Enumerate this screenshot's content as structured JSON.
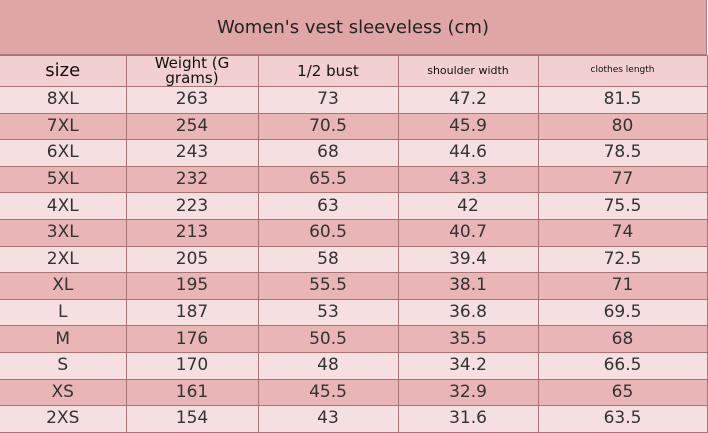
{
  "table": {
    "title": "Women's vest sleeveless (cm)",
    "header": [
      "size",
      "Weight (G grams)",
      "1/2 bust",
      "shoulder width",
      "clothes length"
    ],
    "rows": [
      [
        "8XL",
        263,
        73,
        47.2,
        81.5
      ],
      [
        "7XL",
        254,
        70.5,
        45.9,
        80
      ],
      [
        "6XL",
        243,
        68,
        44.6,
        78.5
      ],
      [
        "5XL",
        232,
        65.5,
        43.3,
        77
      ],
      [
        "4XL",
        223,
        63,
        42,
        75.5
      ],
      [
        "3XL",
        213,
        60.5,
        40.7,
        74
      ],
      [
        "2XL",
        205,
        58,
        39.4,
        72.5
      ],
      [
        "XL",
        195,
        55.5,
        38.1,
        71
      ],
      [
        "L",
        187,
        53,
        36.8,
        69.5
      ],
      [
        "M",
        176,
        50.5,
        35.5,
        68
      ],
      [
        "S",
        170,
        48,
        34.2,
        66.5
      ],
      [
        "XS",
        161,
        45.5,
        32.9,
        65
      ],
      [
        "2XS",
        154,
        43,
        31.6,
        63.5
      ]
    ]
  }
}
